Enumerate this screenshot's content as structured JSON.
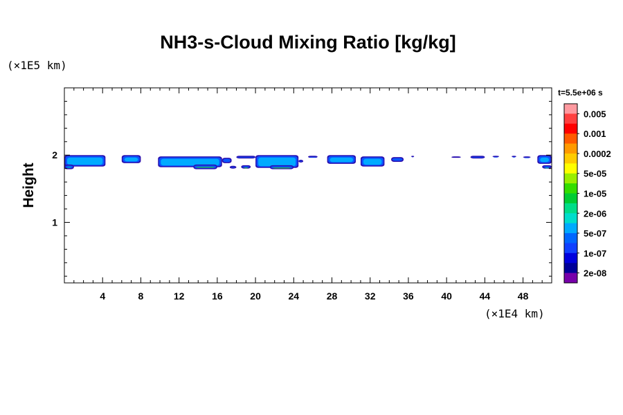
{
  "chart_data": {
    "type": "heatmap",
    "title": "NH3-s-Cloud Mixing Ratio [kg/kg]",
    "ylabel": "Height",
    "xlabel": "",
    "x_scale_label": "(×1E4 km)",
    "y_scale_label": "(×1E5 km)",
    "time_label": "t=5.5e+06 s",
    "xlim": [
      0,
      51
    ],
    "ylim": [
      0.1,
      3.0
    ],
    "x_ticks": [
      4,
      8,
      12,
      16,
      20,
      24,
      28,
      32,
      36,
      40,
      44,
      48
    ],
    "y_ticks": [
      1,
      2
    ],
    "colorbar": {
      "labels": [
        "0.005",
        "0.001",
        "0.0002",
        "5e-05",
        "1e-05",
        "2e-06",
        "5e-07",
        "1e-07",
        "2e-08"
      ],
      "colors": [
        "#ff9aa0",
        "#ff4040",
        "#ff0000",
        "#ff5a00",
        "#ff9a00",
        "#ffcc00",
        "#ffff00",
        "#9aee00",
        "#33dd00",
        "#00cc33",
        "#00dd88",
        "#00ddcc",
        "#00aaff",
        "#0066ff",
        "#1040ff",
        "#0000dd",
        "#000099",
        "#7700aa"
      ]
    },
    "cloud_cells": [
      {
        "x": [
          0.0,
          4.3
        ],
        "y": [
          1.83,
          2.0
        ],
        "level": 2
      },
      {
        "x": [
          0.0,
          1.0
        ],
        "y": [
          1.79,
          1.86
        ],
        "level": 4
      },
      {
        "x": [
          6.0,
          8.0
        ],
        "y": [
          1.88,
          2.0
        ],
        "level": 2
      },
      {
        "x": [
          9.8,
          16.5
        ],
        "y": [
          1.82,
          1.98
        ],
        "level": 2
      },
      {
        "x": [
          13.5,
          16.0
        ],
        "y": [
          1.79,
          1.86
        ],
        "level": 5
      },
      {
        "x": [
          16.5,
          17.5
        ],
        "y": [
          1.88,
          1.96
        ],
        "level": 1
      },
      {
        "x": [
          17.3,
          18.0
        ],
        "y": [
          1.8,
          1.84
        ],
        "level": 4
      },
      {
        "x": [
          18.5,
          19.5
        ],
        "y": [
          1.8,
          1.85
        ],
        "level": 5
      },
      {
        "x": [
          18.0,
          20.0
        ],
        "y": [
          1.95,
          1.99
        ],
        "level": 1
      },
      {
        "x": [
          20.0,
          24.5
        ],
        "y": [
          1.81,
          2.0
        ],
        "level": 2
      },
      {
        "x": [
          21.5,
          24.0
        ],
        "y": [
          1.79,
          1.85
        ],
        "level": 5
      },
      {
        "x": [
          24.5,
          25.0
        ],
        "y": [
          1.89,
          1.93
        ],
        "level": 1
      },
      {
        "x": [
          25.5,
          26.5
        ],
        "y": [
          1.96,
          1.99
        ],
        "level": 1
      },
      {
        "x": [
          27.5,
          30.5
        ],
        "y": [
          1.87,
          2.0
        ],
        "level": 2
      },
      {
        "x": [
          31.0,
          33.5
        ],
        "y": [
          1.83,
          1.98
        ],
        "level": 2
      },
      {
        "x": [
          34.2,
          35.5
        ],
        "y": [
          1.9,
          1.97
        ],
        "level": 1
      },
      {
        "x": [
          36.3,
          36.6
        ],
        "y": [
          1.97,
          1.99
        ],
        "level": 2
      },
      {
        "x": [
          40.5,
          41.5
        ],
        "y": [
          1.96,
          1.98
        ],
        "level": 0
      },
      {
        "x": [
          42.5,
          44.0
        ],
        "y": [
          1.95,
          1.99
        ],
        "level": 1
      },
      {
        "x": [
          44.8,
          45.5
        ],
        "y": [
          1.97,
          1.99
        ],
        "level": 1
      },
      {
        "x": [
          46.8,
          47.3
        ],
        "y": [
          1.97,
          1.99
        ],
        "level": 1
      },
      {
        "x": [
          48.0,
          48.8
        ],
        "y": [
          1.96,
          1.98
        ],
        "level": 1
      },
      {
        "x": [
          49.5,
          51.0
        ],
        "y": [
          1.87,
          2.0
        ],
        "level": 2
      },
      {
        "x": [
          50.0,
          51.0
        ],
        "y": [
          1.8,
          1.85
        ],
        "level": 4
      }
    ]
  }
}
